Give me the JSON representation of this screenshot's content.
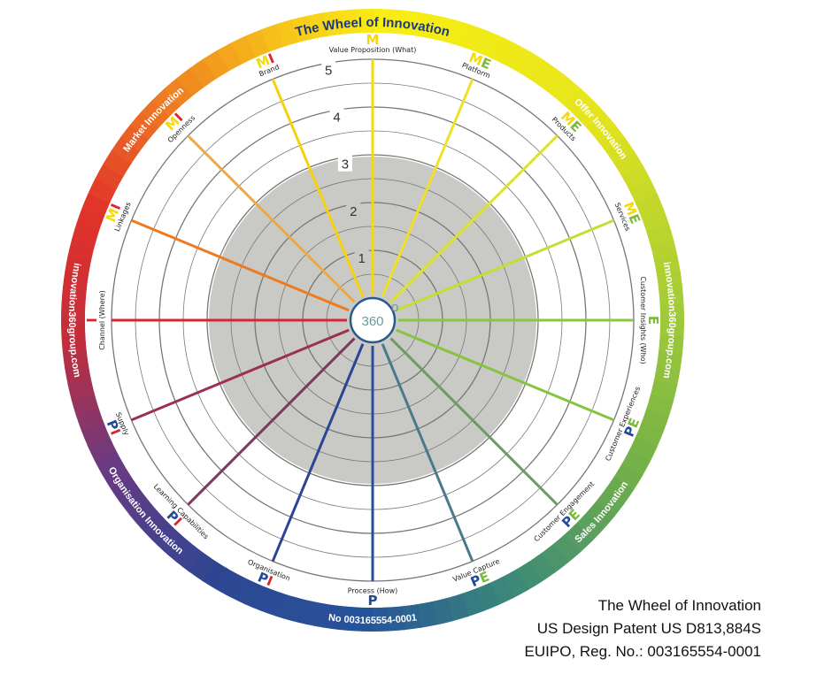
{
  "title": "The Wheel of Innovation",
  "segments": [
    {
      "label": "Offer Innovation",
      "color": "#ffffff"
    },
    {
      "label": "Sales Innovation",
      "color": "#ffffff"
    },
    {
      "label": "Organisation Innovation",
      "color": "#ffffff"
    },
    {
      "label": "Market Innovation",
      "color": "#ffffff"
    }
  ],
  "side_text": [
    "innovation360group.com",
    "innovation360group.com"
  ],
  "bottom_text": "No 003165554-0001",
  "scale": [
    "1",
    "2",
    "3",
    "4",
    "5"
  ],
  "center": "360",
  "center_sup": "o",
  "spokes": [
    {
      "label": "Value Proposition (What)",
      "code": [
        {
          "t": "M",
          "c": "#f5d90a"
        }
      ],
      "color": "#f5d90a"
    },
    {
      "label": "Platform",
      "code": [
        {
          "t": "M",
          "c": "#f5d90a"
        },
        {
          "t": "E",
          "c": "#7cba3a"
        }
      ],
      "color": "#f0e025"
    },
    {
      "label": "Products",
      "code": [
        {
          "t": "M",
          "c": "#f5d90a"
        },
        {
          "t": "E",
          "c": "#7cba3a"
        }
      ],
      "color": "#dfe22a"
    },
    {
      "label": "Services",
      "code": [
        {
          "t": "M",
          "c": "#f5d90a"
        },
        {
          "t": "E",
          "c": "#7cba3a"
        }
      ],
      "color": "#c6dd32"
    },
    {
      "label": "Customer Insights (Who)",
      "code": [
        {
          "t": "E",
          "c": "#7cba3a"
        }
      ],
      "color": "#8cc63e"
    },
    {
      "label": "Customer Experiences",
      "code": [
        {
          "t": "P",
          "c": "#22489a"
        },
        {
          "t": "E",
          "c": "#7cba3a"
        }
      ],
      "color": "#86c440"
    },
    {
      "label": "Customer Engagement",
      "code": [
        {
          "t": "P",
          "c": "#22489a"
        },
        {
          "t": "E",
          "c": "#7cba3a"
        }
      ],
      "color": "#6e9a66"
    },
    {
      "label": "Value Capture",
      "code": [
        {
          "t": "P",
          "c": "#22489a"
        },
        {
          "t": "E",
          "c": "#7cba3a"
        }
      ],
      "color": "#4a7a8a"
    },
    {
      "label": "Process (How)",
      "code": [
        {
          "t": "P",
          "c": "#22489a"
        }
      ],
      "color": "#2a4f9a"
    },
    {
      "label": "Organisation",
      "code": [
        {
          "t": "P",
          "c": "#22489a"
        },
        {
          "t": "I",
          "c": "#d8262e"
        }
      ],
      "color": "#2b4595"
    },
    {
      "label": "Learning Capabilities",
      "code": [
        {
          "t": "P",
          "c": "#22489a"
        },
        {
          "t": "I",
          "c": "#d8262e"
        }
      ],
      "color": "#7a3a5e"
    },
    {
      "label": "Supply",
      "code": [
        {
          "t": "P",
          "c": "#22489a"
        },
        {
          "t": "I",
          "c": "#d8262e"
        }
      ],
      "color": "#9b3050"
    },
    {
      "label": "Channel (Where)",
      "code": [
        {
          "t": "I",
          "c": "#d8262e"
        }
      ],
      "color": "#d8262e"
    },
    {
      "label": "Linkages",
      "code": [
        {
          "t": "M",
          "c": "#f5d90a"
        },
        {
          "t": "I",
          "c": "#d8262e"
        }
      ],
      "color": "#ee7a22"
    },
    {
      "label": "Openness",
      "code": [
        {
          "t": "M",
          "c": "#f5d90a"
        },
        {
          "t": "I",
          "c": "#d8262e"
        }
      ],
      "color": "#f2a93a"
    },
    {
      "label": "Brand",
      "code": [
        {
          "t": "M",
          "c": "#f5d90a"
        },
        {
          "t": "I",
          "c": "#d8262e"
        }
      ],
      "color": "#f5d20a"
    }
  ],
  "caption": {
    "line1": "The Wheel of Innovation",
    "line2": "US Design Patent US D813,884S",
    "line3": "EUIPO, Reg. No.: 003165554-0001"
  }
}
